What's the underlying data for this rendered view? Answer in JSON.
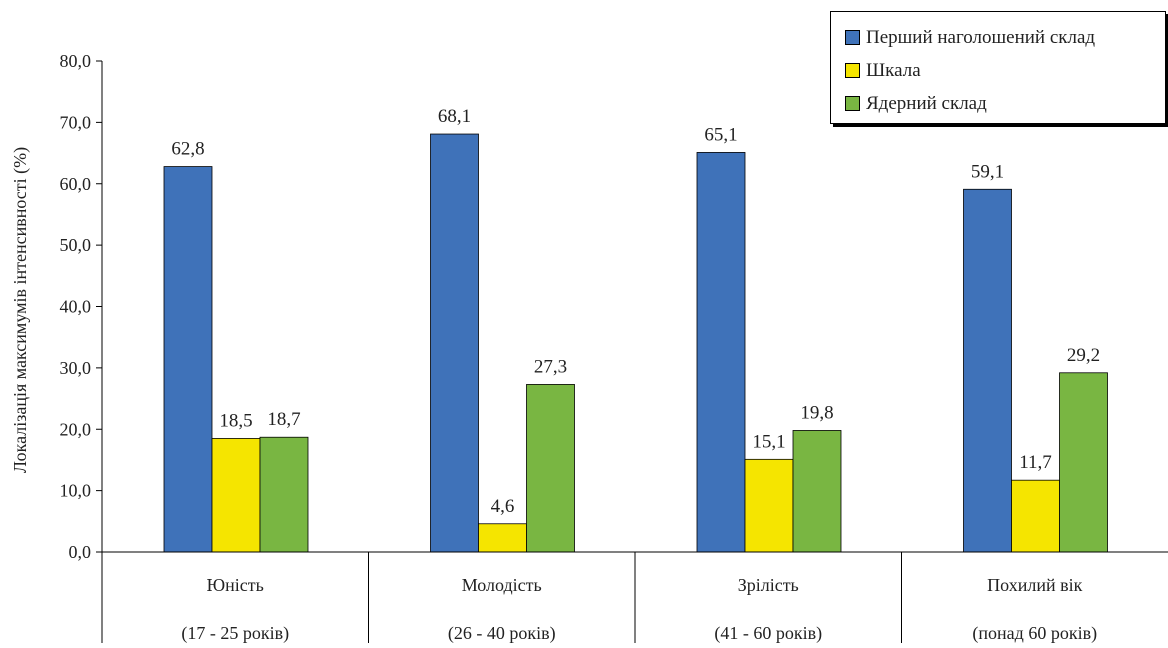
{
  "chart_data": {
    "type": "bar",
    "ylabel": "Локалізація максимумів інтенсивності (%)",
    "xlabel": "",
    "ylim": [
      0,
      80
    ],
    "yticks": [
      "0,0",
      "10,0",
      "20,0",
      "30,0",
      "40,0",
      "50,0",
      "60,0",
      "70,0",
      "80,0"
    ],
    "ytick_values": [
      0,
      10,
      20,
      30,
      40,
      50,
      60,
      70,
      80
    ],
    "grid": false,
    "legend_position": "top-right",
    "categories": [
      {
        "name": "Юність",
        "range": "(17 - 25 років)"
      },
      {
        "name": "Молодість",
        "range": "(26 - 40 років)"
      },
      {
        "name": "Зрілість",
        "range": "(41 - 60 років)"
      },
      {
        "name": "Похилий вік",
        "range": "(понад 60 років)"
      }
    ],
    "series": [
      {
        "name": "Перший наголошений склад",
        "color": "#3f72b9",
        "values": [
          62.8,
          68.1,
          65.1,
          59.1
        ],
        "labels": [
          "62,8",
          "68,1",
          "65,1",
          "59,1"
        ]
      },
      {
        "name": "Шкала",
        "color": "#f5e500",
        "values": [
          18.5,
          4.6,
          15.1,
          11.7
        ],
        "labels": [
          "18,5",
          "4,6",
          "15,1",
          "11,7"
        ]
      },
      {
        "name": "Ядерний склад",
        "color": "#79b642",
        "values": [
          18.7,
          27.3,
          19.8,
          29.2
        ],
        "labels": [
          "18,7",
          "27,3",
          "19,8",
          "29,2"
        ]
      }
    ]
  }
}
